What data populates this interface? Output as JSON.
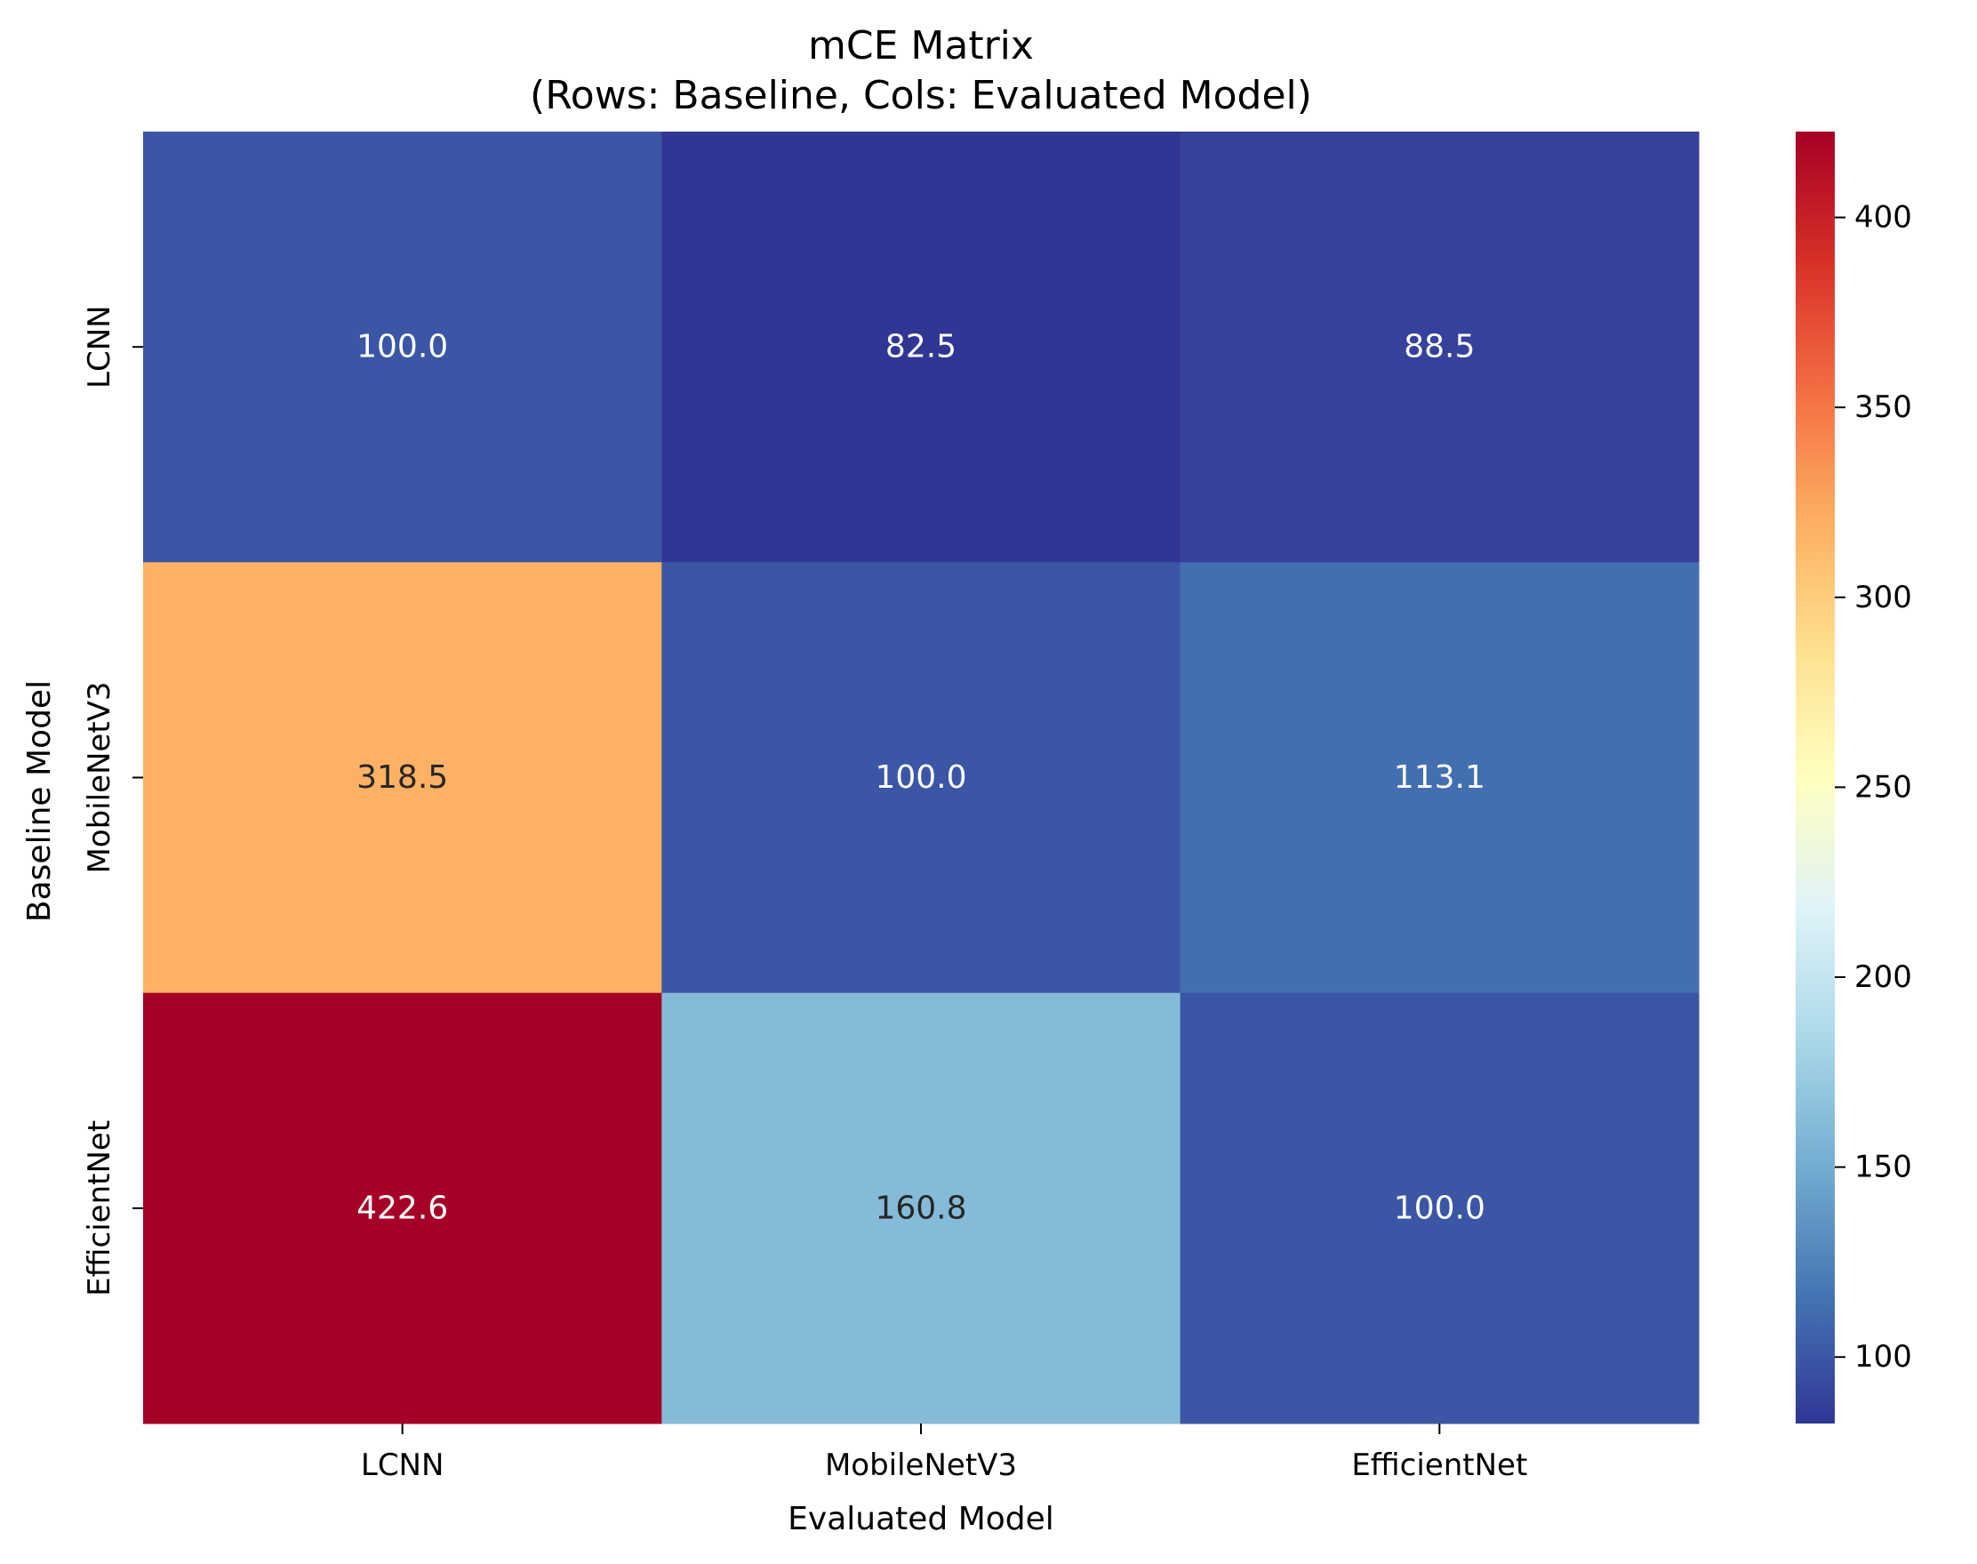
{
  "chart_data": {
    "type": "heatmap",
    "title_lines": [
      "mCE Matrix",
      "(Rows: Baseline, Cols: Evaluated Model)"
    ],
    "xlabel": "Evaluated Model",
    "ylabel": "Baseline Model",
    "x_categories": [
      "LCNN",
      "MobileNetV3",
      "EfficientNet"
    ],
    "y_categories": [
      "LCNN",
      "MobileNetV3",
      "EfficientNet"
    ],
    "values": [
      [
        100.0,
        82.5,
        88.5
      ],
      [
        318.5,
        100.0,
        113.1
      ],
      [
        422.6,
        160.8,
        100.0
      ]
    ],
    "value_format": "one decimal",
    "colormap": "RdYlBu_r",
    "colorbar": {
      "min": 82.5,
      "max": 422.6,
      "ticks": [
        100,
        150,
        200,
        250,
        300,
        350,
        400
      ]
    },
    "colormap_stops": [
      "#313695",
      "#4575b4",
      "#74add1",
      "#abd9e9",
      "#e0f3f8",
      "#ffffbf",
      "#fee090",
      "#fdae61",
      "#f46d43",
      "#d73027",
      "#a50026"
    ]
  }
}
